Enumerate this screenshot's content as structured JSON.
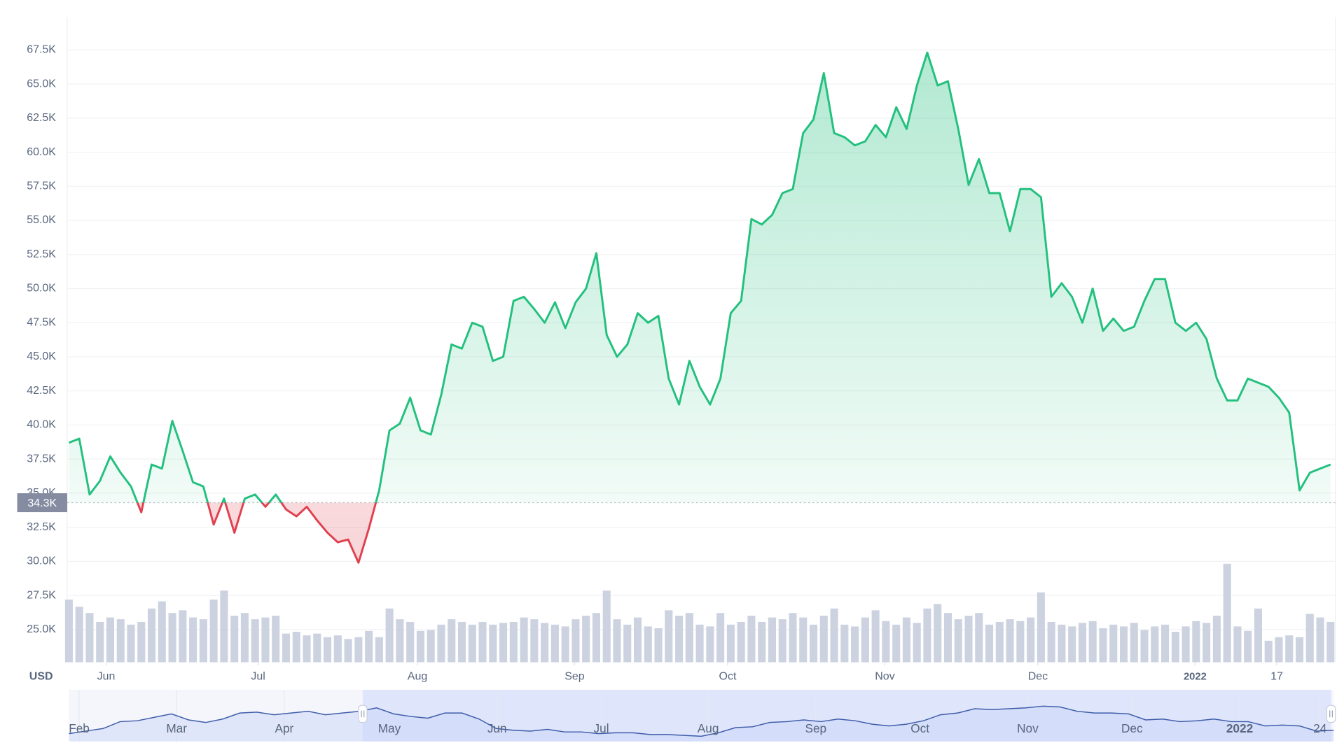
{
  "chart_data": {
    "type": "line",
    "currency": "USD",
    "color_up": "#23c07e",
    "color_down": "#e0414f",
    "volume_color": "#ccd2e0",
    "grid": true,
    "ylim": [
      22600,
      69900
    ],
    "yticks": [
      {
        "value": 25000,
        "label": "25.0K"
      },
      {
        "value": 27500,
        "label": "27.5K"
      },
      {
        "value": 30000,
        "label": "30.0K"
      },
      {
        "value": 32500,
        "label": "32.5K"
      },
      {
        "value": 35000,
        "label": "35.0K"
      },
      {
        "value": 37500,
        "label": "37.5K"
      },
      {
        "value": 40000,
        "label": "40.0K"
      },
      {
        "value": 42500,
        "label": "42.5K"
      },
      {
        "value": 45000,
        "label": "45.0K"
      },
      {
        "value": 47500,
        "label": "47.5K"
      },
      {
        "value": 50000,
        "label": "50.0K"
      },
      {
        "value": 52500,
        "label": "52.5K"
      },
      {
        "value": 55000,
        "label": "55.0K"
      },
      {
        "value": 57500,
        "label": "57.5K"
      },
      {
        "value": 60000,
        "label": "60.0K"
      },
      {
        "value": 62500,
        "label": "62.5K"
      },
      {
        "value": 65000,
        "label": "65.0K"
      },
      {
        "value": 67500,
        "label": "67.5K"
      }
    ],
    "baseline": {
      "value": 34300,
      "label": "34.3K"
    },
    "xlim": [
      0,
      122.3
    ],
    "xticks": [
      {
        "value": 3.6,
        "label": "Jun"
      },
      {
        "value": 18.3,
        "label": "Jul"
      },
      {
        "value": 33.7,
        "label": "Aug"
      },
      {
        "value": 48.9,
        "label": "Sep"
      },
      {
        "value": 63.7,
        "label": "Oct"
      },
      {
        "value": 78.9,
        "label": "Nov"
      },
      {
        "value": 93.7,
        "label": "Dec"
      },
      {
        "value": 108.9,
        "label": "2022",
        "bold": true
      },
      {
        "value": 116.8,
        "label": "17"
      }
    ],
    "values": [
      38700,
      39000,
      34900,
      35900,
      37700,
      36500,
      35500,
      33600,
      37100,
      36800,
      40300,
      38100,
      35800,
      35500,
      32700,
      34600,
      32100,
      34600,
      34900,
      34000,
      34900,
      33800,
      33300,
      34000,
      33000,
      32100,
      31400,
      31600,
      29900,
      32400,
      35200,
      39600,
      40100,
      42000,
      39600,
      39300,
      42200,
      45900,
      45600,
      47500,
      47200,
      44700,
      45000,
      49100,
      49400,
      48500,
      47500,
      49000,
      47100,
      49000,
      50000,
      52600,
      46600,
      45000,
      45900,
      48200,
      47500,
      48000,
      43400,
      41500,
      44700,
      42800,
      41500,
      43400,
      48200,
      49100,
      55100,
      54700,
      55400,
      57000,
      57300,
      61400,
      62400,
      65800,
      61400,
      61100,
      60500,
      60800,
      62000,
      61100,
      63300,
      61700,
      64900,
      67300,
      64900,
      65200,
      61700,
      57600,
      59500,
      57000,
      57000,
      54200,
      57300,
      57300,
      56700,
      49400,
      50400,
      49400,
      47500,
      50000,
      46900,
      47800,
      46900,
      47200,
      49100,
      50700,
      50700,
      47500,
      46900,
      47500,
      46300,
      43400,
      41800,
      41800,
      43400,
      43100,
      42800,
      42000,
      40900,
      35200,
      36500,
      36800,
      37100
    ],
    "volume_lim": [
      0,
      120
    ],
    "volume": [
      70,
      62,
      55,
      45,
      50,
      48,
      42,
      45,
      60,
      68,
      55,
      58,
      50,
      48,
      70,
      80,
      52,
      55,
      48,
      50,
      52,
      32,
      34,
      30,
      32,
      28,
      30,
      26,
      28,
      35,
      28,
      60,
      48,
      45,
      35,
      36,
      42,
      48,
      45,
      42,
      45,
      42,
      44,
      45,
      50,
      48,
      44,
      42,
      40,
      48,
      52,
      55,
      80,
      48,
      42,
      50,
      40,
      38,
      58,
      52,
      55,
      42,
      40,
      55,
      42,
      45,
      52,
      45,
      50,
      48,
      55,
      50,
      42,
      52,
      60,
      42,
      40,
      50,
      58,
      46,
      42,
      50,
      44,
      60,
      65,
      55,
      48,
      52,
      55,
      42,
      45,
      48,
      46,
      50,
      78,
      45,
      42,
      40,
      44,
      46,
      38,
      42,
      40,
      44,
      36,
      40,
      42,
      34,
      40,
      46,
      44,
      52,
      110,
      40,
      35,
      60,
      24,
      28,
      30,
      28,
      54,
      50,
      45
    ],
    "navigator": {
      "color": "#3e5caa",
      "xlim": [
        0,
        74
      ],
      "ylim": [
        28000,
        68000
      ],
      "xticks": [
        {
          "value": 0.6,
          "label": "Feb"
        },
        {
          "value": 6.3,
          "label": "Mar"
        },
        {
          "value": 12.6,
          "label": "Apr"
        },
        {
          "value": 18.75,
          "label": "May"
        },
        {
          "value": 25.05,
          "label": "Jun"
        },
        {
          "value": 31.15,
          "label": "Jul"
        },
        {
          "value": 37.4,
          "label": "Aug"
        },
        {
          "value": 43.7,
          "label": "Sep"
        },
        {
          "value": 49.8,
          "label": "Oct"
        },
        {
          "value": 56.1,
          "label": "Nov"
        },
        {
          "value": 62.2,
          "label": "Dec"
        },
        {
          "value": 68.5,
          "label": "2022",
          "bold": true
        },
        {
          "value": 73.2,
          "label": "24"
        }
      ],
      "values": [
        33000,
        36000,
        39000,
        47000,
        48000,
        52000,
        56000,
        49000,
        46000,
        50000,
        57000,
        58000,
        55000,
        57000,
        59000,
        55000,
        57000,
        59000,
        63000,
        56000,
        53000,
        51000,
        57000,
        57000,
        50000,
        39000,
        37000,
        36000,
        38000,
        35000,
        35000,
        33000,
        34000,
        34000,
        32000,
        32000,
        31000,
        30000,
        34000,
        40000,
        41000,
        46000,
        47000,
        49000,
        47000,
        50000,
        48000,
        44000,
        42000,
        44000,
        48000,
        55000,
        57000,
        62000,
        61000,
        62000,
        63000,
        65000,
        64000,
        59000,
        57000,
        57000,
        56000,
        49000,
        50000,
        47000,
        48000,
        50000,
        47000,
        47000,
        42000,
        43000,
        42000,
        36000,
        37000
      ]
    }
  }
}
